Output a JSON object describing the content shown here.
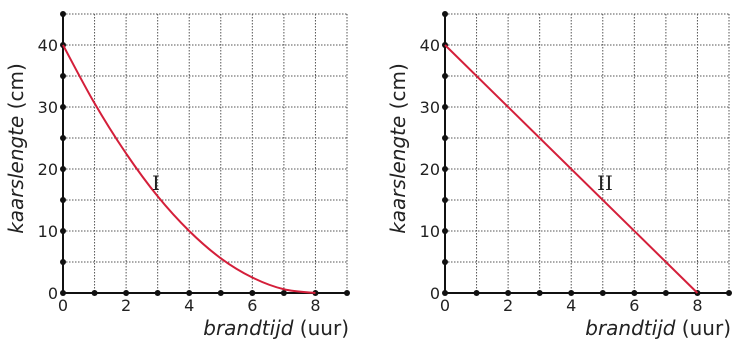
{
  "chart_data": [
    {
      "type": "line",
      "label": "I",
      "xlabel_italic": "brandtijd",
      "xlabel_unit": "(uur)",
      "ylabel_italic": "kaarslengte",
      "ylabel_unit": "(cm)",
      "xlim": [
        0,
        9
      ],
      "ylim": [
        0,
        45
      ],
      "x_ticks": [
        0,
        2,
        4,
        6,
        8
      ],
      "y_ticks": [
        0,
        10,
        20,
        30,
        40
      ],
      "grid": true,
      "color": "#d41f3a",
      "series": [
        {
          "x": [
            0,
            1,
            2,
            3,
            4,
            5,
            6,
            7,
            8
          ],
          "y": [
            40,
            30.6,
            22.5,
            15.6,
            10,
            5.6,
            2.5,
            0.6,
            0
          ]
        }
      ]
    },
    {
      "type": "line",
      "label": "II",
      "xlabel_italic": "brandtijd",
      "xlabel_unit": "(uur)",
      "ylabel_italic": "kaarslengte",
      "ylabel_unit": "(cm)",
      "xlim": [
        0,
        9
      ],
      "ylim": [
        0,
        45
      ],
      "x_ticks": [
        0,
        2,
        4,
        6,
        8
      ],
      "y_ticks": [
        0,
        10,
        20,
        30,
        40
      ],
      "grid": true,
      "color": "#d41f3a",
      "series": [
        {
          "x": [
            0,
            8
          ],
          "y": [
            40,
            0
          ]
        }
      ]
    }
  ]
}
